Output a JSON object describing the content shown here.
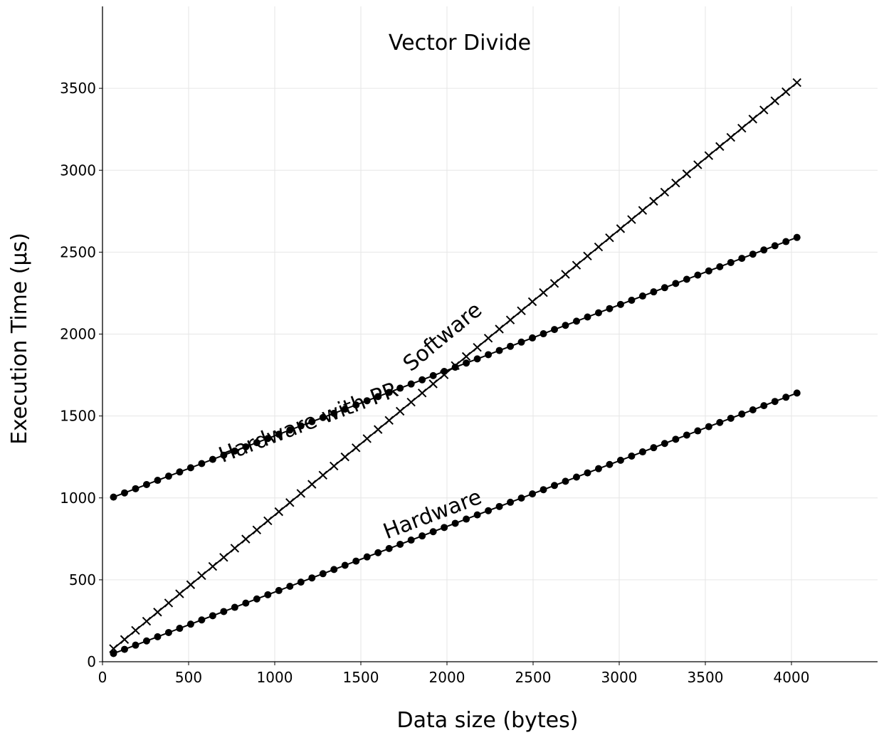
{
  "chart_data": {
    "type": "line",
    "title": "Vector Divide",
    "xlabel": "Data size (bytes)",
    "ylabel": "Execution Time (µs)",
    "xlim": [
      0,
      4500
    ],
    "ylim": [
      0,
      4000
    ],
    "xticks": [
      0,
      500,
      1000,
      1500,
      2000,
      2500,
      3000,
      3500,
      4000
    ],
    "yticks": [
      0,
      500,
      1000,
      1500,
      2000,
      2500,
      3000,
      3500
    ],
    "grid": true,
    "legend": "none (series labelled inline)",
    "x_range": [
      64,
      4032
    ],
    "x_step": 64,
    "series": [
      {
        "name": "Software",
        "marker": "x",
        "values_at_endpoints": [
          [
            64,
            80
          ],
          [
            4032,
            3535
          ]
        ],
        "label": "Software",
        "label_position_data": [
          2000,
          1950
        ],
        "label_angle_data_slope": 0.87
      },
      {
        "name": "Hardware with PR",
        "marker": "circle",
        "values_at_endpoints": [
          [
            64,
            1005
          ],
          [
            4032,
            2590
          ]
        ],
        "label": "Hardware with PR",
        "label_position_data": [
          1210,
          1420
        ],
        "label_angle_data_slope": 0.4
      },
      {
        "name": "Hardware",
        "marker": "circle",
        "values_at_endpoints": [
          [
            64,
            50
          ],
          [
            4032,
            1640
          ]
        ],
        "label": "Hardware",
        "label_position_data": [
          1930,
          860
        ],
        "label_angle_data_slope": 0.4
      }
    ],
    "colors": {
      "line": "#000000",
      "grid": "#e6e6e6",
      "background": "#ffffff"
    }
  }
}
